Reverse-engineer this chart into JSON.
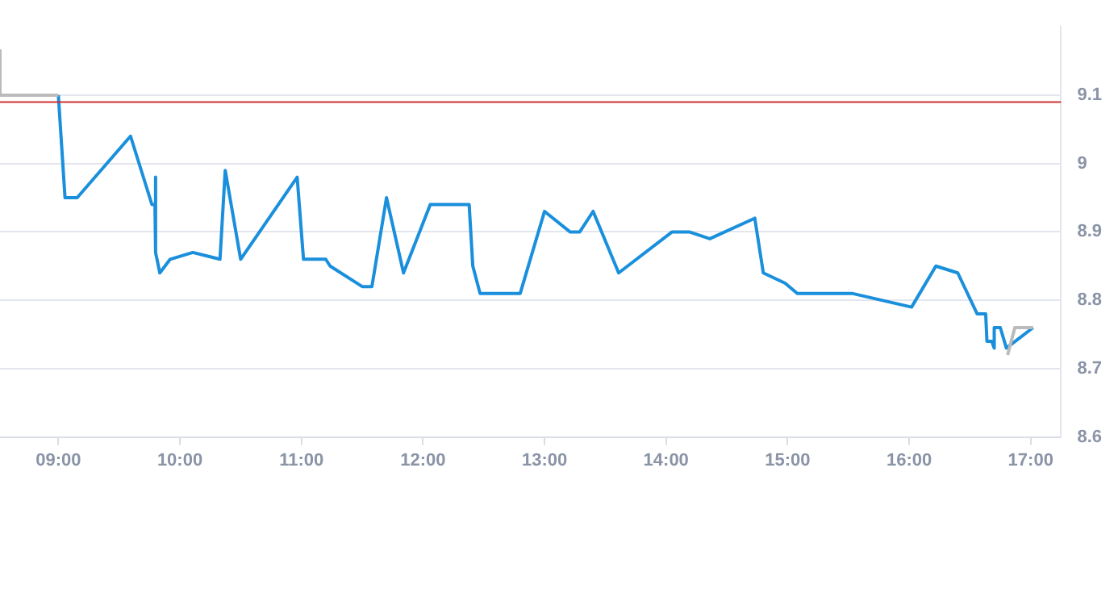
{
  "chart_data": {
    "type": "line",
    "xlim": [
      8.52,
      17.25
    ],
    "xticks": [
      {
        "value": 9,
        "label": "09:00"
      },
      {
        "value": 10,
        "label": "10:00"
      },
      {
        "value": 11,
        "label": "11:00"
      },
      {
        "value": 12,
        "label": "12:00"
      },
      {
        "value": 13,
        "label": "13:00"
      },
      {
        "value": 14,
        "label": "14:00"
      },
      {
        "value": 15,
        "label": "15:00"
      },
      {
        "value": 16,
        "label": "16:00"
      },
      {
        "value": 17,
        "label": "17:00"
      }
    ],
    "ylim": [
      8.6,
      9.2
    ],
    "yticks": [
      8.6,
      8.7,
      8.8,
      8.9,
      {
        "value": 9,
        "label": "9"
      },
      9.1
    ],
    "grid": "y",
    "legend": false,
    "marker": "none",
    "line_style": "solid",
    "ref_lines": [
      {
        "axis": "y",
        "value": 9.09,
        "color": "#cc3333"
      }
    ],
    "series": [
      {
        "color": "#bbbbbb",
        "x": [
          8.52,
          8.52,
          9.0,
          null,
          16.81,
          16.87,
          17.02
        ],
        "values": [
          9.165,
          9.1,
          9.1,
          null,
          8.72,
          8.76,
          8.76
        ]
      },
      {
        "color": "#1a8fdc",
        "x": [
          9.0,
          9.055,
          9.155,
          9.594,
          9.77,
          9.795,
          9.8,
          9.8,
          9.835,
          9.92,
          10.107,
          10.33,
          10.373,
          10.5,
          10.965,
          11.017,
          11.2,
          11.236,
          11.5,
          11.58,
          11.7,
          11.84,
          12.06,
          12.38,
          12.41,
          12.47,
          12.8,
          13.0,
          13.21,
          13.29,
          13.4,
          13.61,
          14.05,
          14.19,
          14.36,
          14.73,
          14.8,
          14.98,
          15.08,
          15.53,
          16.02,
          16.22,
          16.4,
          16.56,
          16.63,
          16.64,
          16.68,
          16.7,
          16.7,
          16.75,
          16.8,
          17.02
        ],
        "values": [
          9.1,
          8.95,
          8.95,
          9.04,
          8.94,
          8.94,
          8.98,
          8.87,
          8.84,
          8.86,
          8.87,
          8.86,
          8.99,
          8.86,
          8.98,
          8.86,
          8.86,
          8.85,
          8.82,
          8.82,
          8.95,
          8.84,
          8.94,
          8.94,
          8.85,
          8.81,
          8.81,
          8.93,
          8.9,
          8.9,
          8.93,
          8.84,
          8.9,
          8.9,
          8.89,
          8.92,
          8.84,
          8.825,
          8.81,
          8.81,
          8.79,
          8.85,
          8.84,
          8.78,
          8.78,
          8.74,
          8.74,
          8.73,
          8.76,
          8.76,
          8.73,
          8.76
        ]
      }
    ]
  }
}
